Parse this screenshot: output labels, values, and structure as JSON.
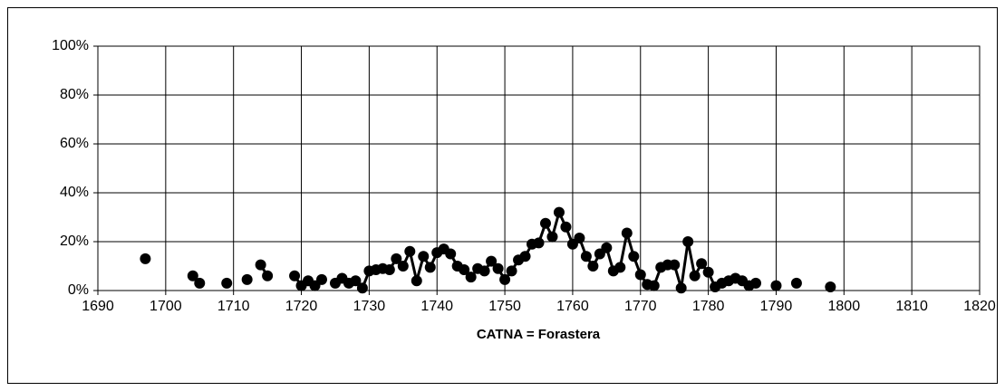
{
  "chart_data": {
    "type": "line",
    "x_label": "CATNA = Forastera",
    "x": [
      1697,
      1698,
      1704,
      1705,
      1706,
      1709,
      1710,
      1712,
      1713,
      1714,
      1715,
      1716,
      1719,
      1720,
      1721,
      1722,
      1723,
      1724,
      1725,
      1726,
      1727,
      1728,
      1729,
      1730,
      1731,
      1732,
      1733,
      1734,
      1735,
      1736,
      1737,
      1738,
      1739,
      1740,
      1741,
      1742,
      1743,
      1744,
      1745,
      1746,
      1747,
      1748,
      1749,
      1750,
      1751,
      1752,
      1753,
      1754,
      1755,
      1756,
      1757,
      1758,
      1759,
      1760,
      1761,
      1762,
      1763,
      1764,
      1765,
      1766,
      1767,
      1768,
      1769,
      1770,
      1771,
      1772,
      1773,
      1774,
      1775,
      1776,
      1777,
      1778,
      1779,
      1780,
      1781,
      1782,
      1783,
      1784,
      1785,
      1786,
      1787,
      1788,
      1790,
      1791,
      1793,
      1794,
      1798
    ],
    "series": [
      {
        "color": "#000000",
        "values": [
          13,
          null,
          6,
          3,
          null,
          3,
          null,
          4.5,
          null,
          10.5,
          6,
          null,
          6,
          2,
          4,
          2,
          4.5,
          null,
          3,
          5,
          3,
          4,
          1,
          8,
          8.5,
          9,
          8.5,
          13,
          10,
          16,
          4,
          14,
          9.5,
          15.5,
          17,
          15,
          10,
          8.5,
          5.5,
          9,
          8,
          12,
          9,
          4.5,
          8,
          12.5,
          14,
          19,
          19.5,
          27.5,
          22,
          32,
          26,
          19,
          21.5,
          14,
          10,
          15,
          17.5,
          8,
          9.5,
          23.5,
          14,
          6.5,
          2.5,
          2,
          9.5,
          10.5,
          10.5,
          1,
          20,
          6,
          11,
          7.5,
          1.5,
          3,
          4,
          5,
          4,
          2,
          3,
          null,
          2,
          null,
          3,
          null,
          1.5
        ]
      }
    ],
    "xlim": [
      1690,
      1820
    ],
    "xticks": [
      1690,
      1700,
      1710,
      1720,
      1730,
      1740,
      1750,
      1760,
      1770,
      1780,
      1790,
      1800,
      1810,
      1820
    ],
    "ylim": [
      0,
      100
    ],
    "yticks": [
      {
        "value": 0,
        "label": "0%"
      },
      {
        "value": 20,
        "label": "20%"
      },
      {
        "value": 40,
        "label": "40%"
      },
      {
        "value": 60,
        "label": "60%"
      },
      {
        "value": 80,
        "label": "80%"
      },
      {
        "value": 100,
        "label": "100%"
      }
    ],
    "grid": true
  }
}
